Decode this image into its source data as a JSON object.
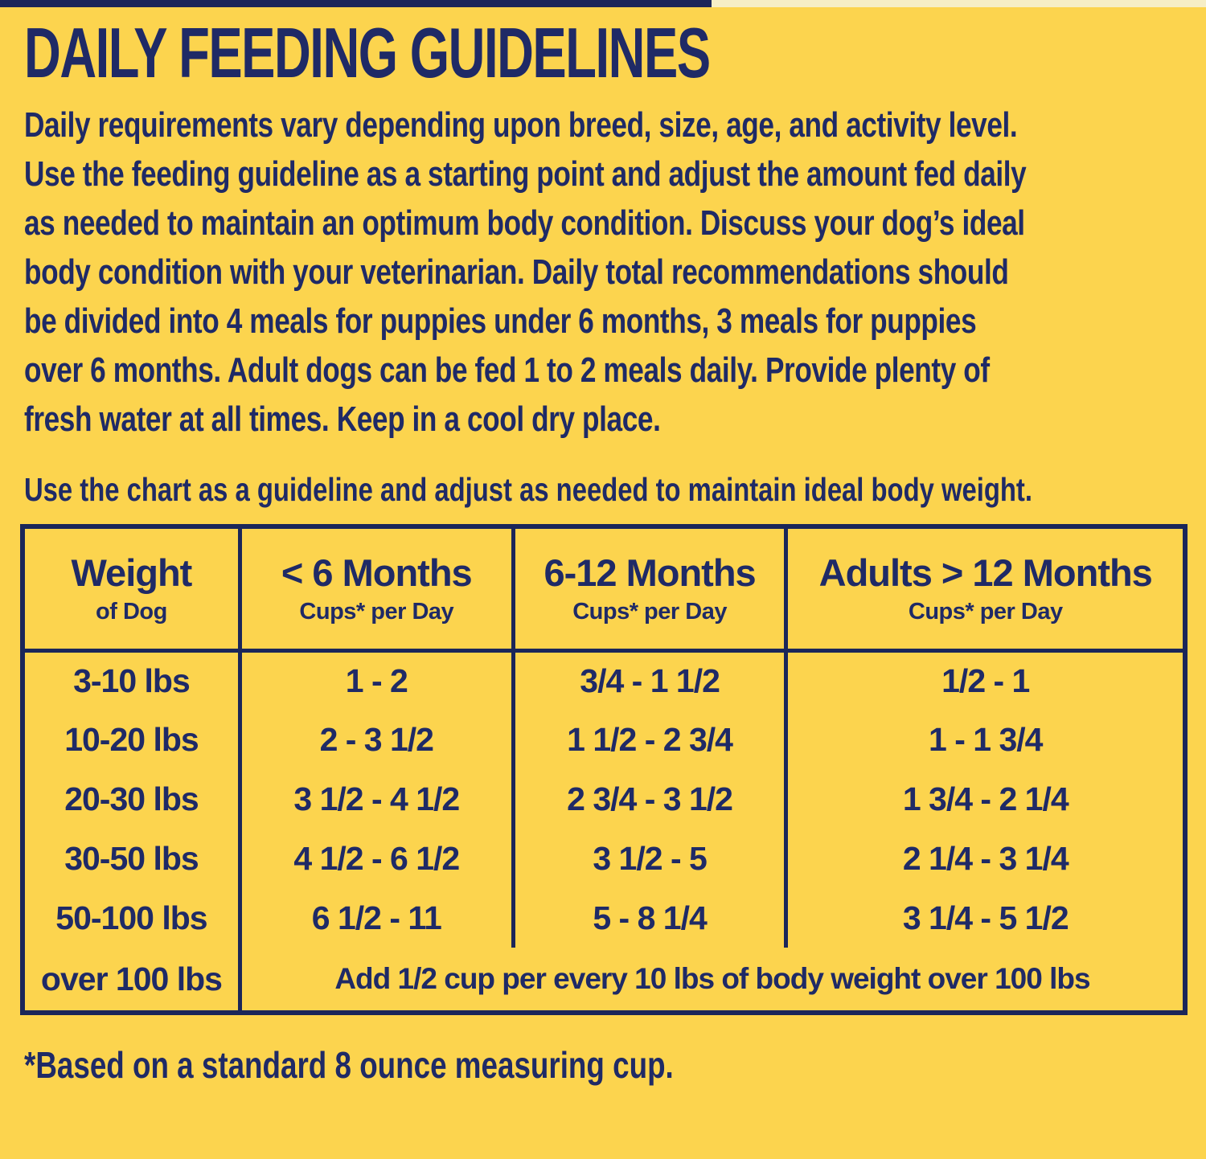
{
  "colors": {
    "background": "#FCD44E",
    "ink": "#1F2A66",
    "border": "#1B2659",
    "strip_light": "#F6EEC6"
  },
  "header": {
    "title": "DAILY FEEDING GUIDELINES",
    "intro": "Daily requirements vary depending upon breed, size, age, and activity level. Use the feeding guideline as a starting point and adjust the amount fed daily as needed to maintain an optimum body condition. Discuss your dog’s ideal body condition with your veterinarian. Daily total recommendations should be divided into 4 meals for puppies under 6 months, 3 meals for puppies over 6 months. Adult dogs can be fed 1 to 2 meals daily. Provide plenty of fresh water at all times. Keep in a cool dry place.",
    "chart_note": "Use the chart as a guideline and adjust as needed to maintain ideal body weight."
  },
  "table": {
    "columns": [
      {
        "title": "Weight",
        "subtitle": "of Dog"
      },
      {
        "title": "< 6 Months",
        "subtitle": "Cups* per Day"
      },
      {
        "title": "6-12 Months",
        "subtitle": "Cups* per Day"
      },
      {
        "title": "Adults > 12 Months",
        "subtitle": "Cups* per Day"
      }
    ],
    "rows": [
      [
        "3-10 lbs",
        "1 - 2",
        "3/4 - 1 1/2",
        "1/2 - 1"
      ],
      [
        "10-20 lbs",
        "2 - 3 1/2",
        "1 1/2 - 2 3/4",
        "1 - 1 3/4"
      ],
      [
        "20-30 lbs",
        "3 1/2 - 4 1/2",
        "2 3/4 - 3 1/2",
        "1 3/4 - 2 1/4"
      ],
      [
        "30-50 lbs",
        "4 1/2 - 6 1/2",
        "3 1/2 - 5",
        "2 1/4 - 3 1/4"
      ],
      [
        "50-100 lbs",
        "6 1/2 - 11",
        "5 - 8 1/4",
        "3 1/4 - 5 1/2"
      ]
    ],
    "over_100": {
      "label": "over 100 lbs",
      "note": "Add 1/2 cup per every 10 lbs of body weight over 100 lbs"
    }
  },
  "footnote": "*Based on a standard 8 ounce measuring cup."
}
